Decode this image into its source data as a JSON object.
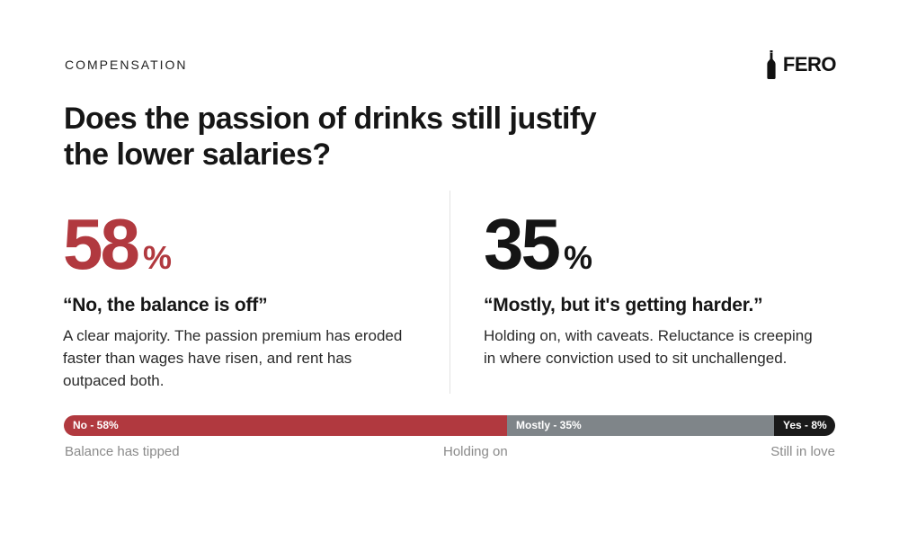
{
  "header": {
    "eyebrow": "COMPENSATION",
    "brand": "FERO",
    "brand_icon": "wine-bottle-icon",
    "title": "Does the passion of drinks still justify the lower salaries?"
  },
  "stats": [
    {
      "value": "58",
      "unit": "%",
      "quote": "“No, the balance is off”",
      "description": "A clear majority. The passion premium has eroded faster than wages have risen, and rent has outpaced both.",
      "color": "#b1393f"
    },
    {
      "value": "35",
      "unit": "%",
      "quote": "“Mostly, but it's getting harder.”",
      "description": "Holding on, with caveats. Reluctance is creeping in where conviction used to sit unchallenged.",
      "color": "#151515"
    }
  ],
  "chart_data": {
    "type": "bar",
    "orientation": "horizontal-stacked",
    "categories": [
      "No",
      "Mostly",
      "Yes"
    ],
    "values": [
      58,
      35,
      8
    ],
    "labels": [
      "No - 58%",
      "Mostly - 35%",
      "Yes - 8%"
    ],
    "colors": [
      "#b1393f",
      "#7f8589",
      "#1a1a1a"
    ],
    "scale_labels": [
      "Balance has tipped",
      "Holding on",
      "Still in love"
    ]
  }
}
